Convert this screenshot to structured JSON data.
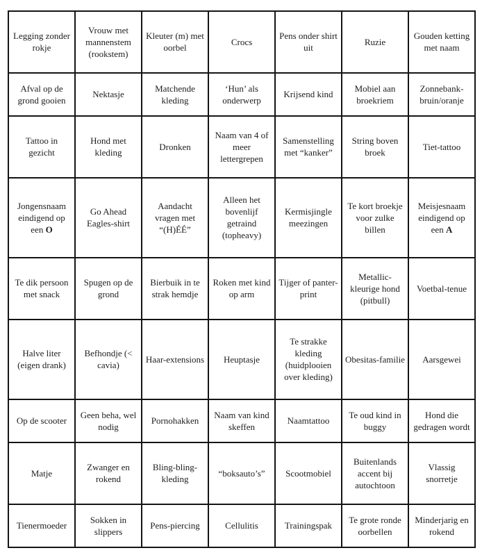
{
  "card": {
    "title": "kermis-bingo-card",
    "columns": 7,
    "rows": 9
  },
  "colors": {
    "background": "#ffffff",
    "border": "#141414",
    "text": "#1e1e1e"
  },
  "grid": {
    "rows": [
      [
        "Legging zonder rokje",
        "Vrouw met mannenstem (rookstem)",
        "Kleuter (m) met oorbel",
        "Crocs",
        "Pens onder shirt uit",
        "Ruzie",
        "Gouden ketting met naam"
      ],
      [
        "Afval op de grond gooien",
        "Nektasje",
        "Matchende kleding",
        "‘Hun’ als onderwerp",
        "Krijsend kind",
        "Mobiel aan broekriem",
        "Zonnebank-bruin/oranje"
      ],
      [
        "Tattoo in gezicht",
        "Hond met kleding",
        "Dronken",
        "Naam van 4 of meer lettergrepen",
        "Samenstelling met “kanker”",
        "String boven broek",
        "Tiet-tattoo"
      ],
      [
        "Jongensnaam eindigend op een **O**",
        "Go Ahead Eagles-shirt",
        "Aandacht vragen met “(H)ÉÉ”",
        "Alleen het bovenlijf getraind (topheavy)",
        "Kermisjingle meezingen",
        "Te kort broekje voor zulke billen",
        "Meisjesnaam eindigend op een **A**"
      ],
      [
        "Te dik persoon met snack",
        "Spugen op de grond",
        "Bierbuik in te strak hemdje",
        "Roken met kind op arm",
        "Tijger of panter-print",
        "Metallic-kleurige hond (pitbull)",
        "Voetbal-tenue"
      ],
      [
        "Halve liter (eigen drank)",
        "Befhondje (< cavia)",
        "Haar-extensions",
        "Heuptasje",
        "Te strakke kleding (huidplooien over kleding)",
        "Obesitas-familie",
        "Aarsgewei"
      ],
      [
        "Op de scooter",
        "Geen beha, wel nodig",
        "Pornohakken",
        "Naam van kind skeffen",
        "Naamtattoo",
        "Te oud kind in buggy",
        "Hond die gedragen wordt"
      ],
      [
        "Matje",
        "Zwanger en rokend",
        "Bling-bling-kleding",
        "“boksauto’s”",
        "Scootmobiel",
        "Buitenlands accent bij autochtoon",
        "Vlassig snorretje"
      ],
      [
        "Tienermoeder",
        "Sokken in slippers",
        "Pens-piercing",
        "Cellulitis",
        "Trainingspak",
        "Te grote ronde oorbellen",
        "Minderjarig en rokend"
      ]
    ]
  }
}
